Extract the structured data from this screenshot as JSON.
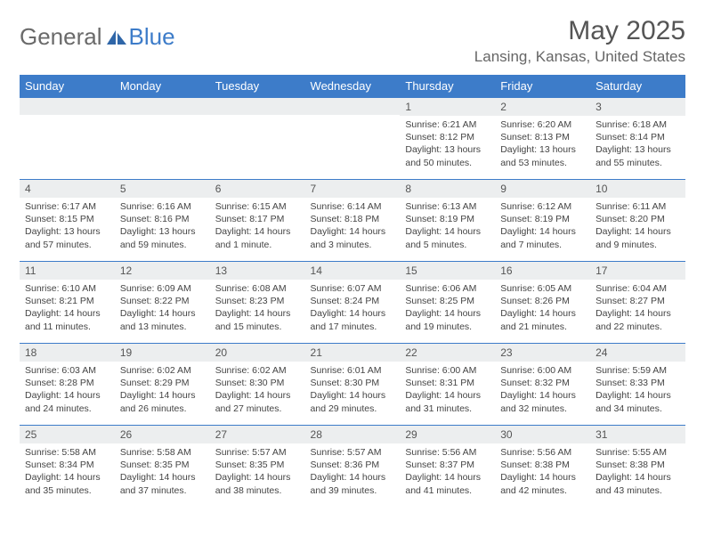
{
  "brand": {
    "general": "General",
    "blue": "Blue"
  },
  "title": "May 2025",
  "location": "Lansing, Kansas, United States",
  "colors": {
    "header_bg": "#3d7cc9",
    "header_text": "#ffffff",
    "daynum_bg": "#eceeef",
    "body_text": "#444444",
    "rule": "#3d7cc9",
    "logo_icon": "#2f66a8"
  },
  "weekdays": [
    "Sunday",
    "Monday",
    "Tuesday",
    "Wednesday",
    "Thursday",
    "Friday",
    "Saturday"
  ],
  "cells": [
    {
      "day": "",
      "sunrise": "",
      "sunset": "",
      "daylight": ""
    },
    {
      "day": "",
      "sunrise": "",
      "sunset": "",
      "daylight": ""
    },
    {
      "day": "",
      "sunrise": "",
      "sunset": "",
      "daylight": ""
    },
    {
      "day": "",
      "sunrise": "",
      "sunset": "",
      "daylight": ""
    },
    {
      "day": "1",
      "sunrise": "Sunrise: 6:21 AM",
      "sunset": "Sunset: 8:12 PM",
      "daylight": "Daylight: 13 hours and 50 minutes."
    },
    {
      "day": "2",
      "sunrise": "Sunrise: 6:20 AM",
      "sunset": "Sunset: 8:13 PM",
      "daylight": "Daylight: 13 hours and 53 minutes."
    },
    {
      "day": "3",
      "sunrise": "Sunrise: 6:18 AM",
      "sunset": "Sunset: 8:14 PM",
      "daylight": "Daylight: 13 hours and 55 minutes."
    },
    {
      "day": "4",
      "sunrise": "Sunrise: 6:17 AM",
      "sunset": "Sunset: 8:15 PM",
      "daylight": "Daylight: 13 hours and 57 minutes."
    },
    {
      "day": "5",
      "sunrise": "Sunrise: 6:16 AM",
      "sunset": "Sunset: 8:16 PM",
      "daylight": "Daylight: 13 hours and 59 minutes."
    },
    {
      "day": "6",
      "sunrise": "Sunrise: 6:15 AM",
      "sunset": "Sunset: 8:17 PM",
      "daylight": "Daylight: 14 hours and 1 minute."
    },
    {
      "day": "7",
      "sunrise": "Sunrise: 6:14 AM",
      "sunset": "Sunset: 8:18 PM",
      "daylight": "Daylight: 14 hours and 3 minutes."
    },
    {
      "day": "8",
      "sunrise": "Sunrise: 6:13 AM",
      "sunset": "Sunset: 8:19 PM",
      "daylight": "Daylight: 14 hours and 5 minutes."
    },
    {
      "day": "9",
      "sunrise": "Sunrise: 6:12 AM",
      "sunset": "Sunset: 8:19 PM",
      "daylight": "Daylight: 14 hours and 7 minutes."
    },
    {
      "day": "10",
      "sunrise": "Sunrise: 6:11 AM",
      "sunset": "Sunset: 8:20 PM",
      "daylight": "Daylight: 14 hours and 9 minutes."
    },
    {
      "day": "11",
      "sunrise": "Sunrise: 6:10 AM",
      "sunset": "Sunset: 8:21 PM",
      "daylight": "Daylight: 14 hours and 11 minutes."
    },
    {
      "day": "12",
      "sunrise": "Sunrise: 6:09 AM",
      "sunset": "Sunset: 8:22 PM",
      "daylight": "Daylight: 14 hours and 13 minutes."
    },
    {
      "day": "13",
      "sunrise": "Sunrise: 6:08 AM",
      "sunset": "Sunset: 8:23 PM",
      "daylight": "Daylight: 14 hours and 15 minutes."
    },
    {
      "day": "14",
      "sunrise": "Sunrise: 6:07 AM",
      "sunset": "Sunset: 8:24 PM",
      "daylight": "Daylight: 14 hours and 17 minutes."
    },
    {
      "day": "15",
      "sunrise": "Sunrise: 6:06 AM",
      "sunset": "Sunset: 8:25 PM",
      "daylight": "Daylight: 14 hours and 19 minutes."
    },
    {
      "day": "16",
      "sunrise": "Sunrise: 6:05 AM",
      "sunset": "Sunset: 8:26 PM",
      "daylight": "Daylight: 14 hours and 21 minutes."
    },
    {
      "day": "17",
      "sunrise": "Sunrise: 6:04 AM",
      "sunset": "Sunset: 8:27 PM",
      "daylight": "Daylight: 14 hours and 22 minutes."
    },
    {
      "day": "18",
      "sunrise": "Sunrise: 6:03 AM",
      "sunset": "Sunset: 8:28 PM",
      "daylight": "Daylight: 14 hours and 24 minutes."
    },
    {
      "day": "19",
      "sunrise": "Sunrise: 6:02 AM",
      "sunset": "Sunset: 8:29 PM",
      "daylight": "Daylight: 14 hours and 26 minutes."
    },
    {
      "day": "20",
      "sunrise": "Sunrise: 6:02 AM",
      "sunset": "Sunset: 8:30 PM",
      "daylight": "Daylight: 14 hours and 27 minutes."
    },
    {
      "day": "21",
      "sunrise": "Sunrise: 6:01 AM",
      "sunset": "Sunset: 8:30 PM",
      "daylight": "Daylight: 14 hours and 29 minutes."
    },
    {
      "day": "22",
      "sunrise": "Sunrise: 6:00 AM",
      "sunset": "Sunset: 8:31 PM",
      "daylight": "Daylight: 14 hours and 31 minutes."
    },
    {
      "day": "23",
      "sunrise": "Sunrise: 6:00 AM",
      "sunset": "Sunset: 8:32 PM",
      "daylight": "Daylight: 14 hours and 32 minutes."
    },
    {
      "day": "24",
      "sunrise": "Sunrise: 5:59 AM",
      "sunset": "Sunset: 8:33 PM",
      "daylight": "Daylight: 14 hours and 34 minutes."
    },
    {
      "day": "25",
      "sunrise": "Sunrise: 5:58 AM",
      "sunset": "Sunset: 8:34 PM",
      "daylight": "Daylight: 14 hours and 35 minutes."
    },
    {
      "day": "26",
      "sunrise": "Sunrise: 5:58 AM",
      "sunset": "Sunset: 8:35 PM",
      "daylight": "Daylight: 14 hours and 37 minutes."
    },
    {
      "day": "27",
      "sunrise": "Sunrise: 5:57 AM",
      "sunset": "Sunset: 8:35 PM",
      "daylight": "Daylight: 14 hours and 38 minutes."
    },
    {
      "day": "28",
      "sunrise": "Sunrise: 5:57 AM",
      "sunset": "Sunset: 8:36 PM",
      "daylight": "Daylight: 14 hours and 39 minutes."
    },
    {
      "day": "29",
      "sunrise": "Sunrise: 5:56 AM",
      "sunset": "Sunset: 8:37 PM",
      "daylight": "Daylight: 14 hours and 41 minutes."
    },
    {
      "day": "30",
      "sunrise": "Sunrise: 5:56 AM",
      "sunset": "Sunset: 8:38 PM",
      "daylight": "Daylight: 14 hours and 42 minutes."
    },
    {
      "day": "31",
      "sunrise": "Sunrise: 5:55 AM",
      "sunset": "Sunset: 8:38 PM",
      "daylight": "Daylight: 14 hours and 43 minutes."
    }
  ]
}
